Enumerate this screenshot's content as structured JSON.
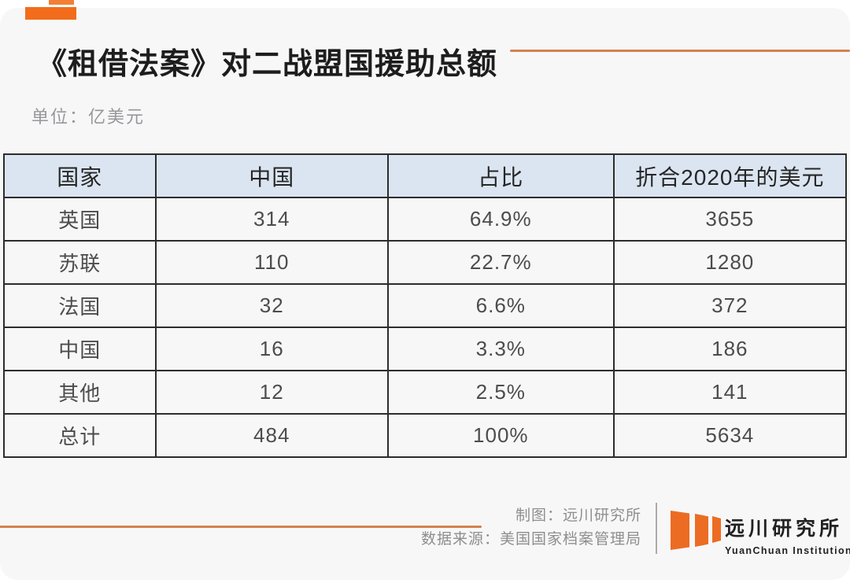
{
  "page": {
    "title": "《租借法案》对二战盟国援助总额",
    "unit_label": "单位：亿美元"
  },
  "table": {
    "headers": [
      "国家",
      "中国",
      "占比",
      "折合2020年的美元"
    ],
    "rows": [
      [
        "英国",
        "314",
        "64.9%",
        "3655"
      ],
      [
        "苏联",
        "110",
        "22.7%",
        "1280"
      ],
      [
        "法国",
        "32",
        "6.6%",
        "372"
      ],
      [
        "中国",
        "16",
        "3.3%",
        "186"
      ],
      [
        "其他",
        "12",
        "2.5%",
        "141"
      ],
      [
        "总计",
        "484",
        "100%",
        "5634"
      ]
    ]
  },
  "footer": {
    "credit": "制图：远川研究所",
    "source": "数据来源：美国国家档案管理局",
    "logo_cn": "远川研究所",
    "logo_en": "YuanChuan Institution"
  },
  "colors": {
    "accent_orange": "#f26c1b",
    "line_orange": "#d5814f",
    "logo_orange": "#ec6c23",
    "header_blue": "#dbe5f1",
    "card_bg": "#f7f7f8",
    "border_dark": "#2c2c2c"
  },
  "chart_data": {
    "type": "table",
    "title": "《租借法案》对二战盟国援助总额",
    "unit": "亿美元",
    "columns": [
      "国家",
      "中国",
      "占比",
      "折合2020年的美元"
    ],
    "categories": [
      "英国",
      "苏联",
      "法国",
      "中国",
      "其他",
      "总计"
    ],
    "series": [
      {
        "name": "中国(金额, 亿美元)",
        "values": [
          314,
          110,
          32,
          16,
          12,
          484
        ]
      },
      {
        "name": "占比",
        "values": [
          "64.9%",
          "22.7%",
          "6.6%",
          "3.3%",
          "2.5%",
          "100%"
        ]
      },
      {
        "name": "折合2020年的美元",
        "values": [
          3655,
          1280,
          372,
          186,
          141,
          5634
        ]
      }
    ],
    "source": "美国国家档案管理局",
    "credit": "远川研究所"
  }
}
